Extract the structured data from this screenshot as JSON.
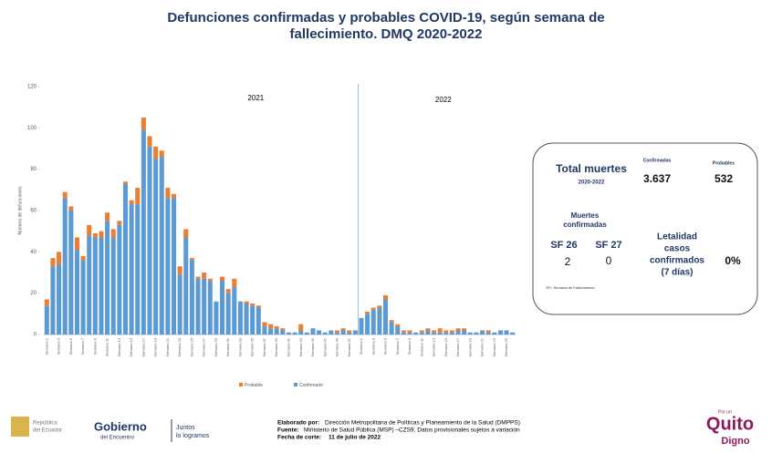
{
  "header": {
    "title_lines": [
      "Defunciones confirmadas y probables COVID-19, según semana de",
      "fallecimiento. DMQ 2020-2022"
    ]
  },
  "chart_data": {
    "type": "bar",
    "stacked": true,
    "ylabel": "Número de defunciones",
    "annotations": [
      "2021",
      "2022"
    ],
    "categories": [
      "Semana 1",
      null,
      "Semana 3",
      null,
      "Semana 5",
      null,
      "Semana 7",
      null,
      "Semana 9",
      null,
      "Semana 11",
      null,
      "Semana 13",
      null,
      "Semana 15",
      null,
      "Semana 17",
      null,
      "Semana 19",
      null,
      "Semana 21",
      null,
      "Semana 23",
      null,
      "Semana 25",
      null,
      "Semana 27",
      null,
      "Semana 29",
      null,
      "Semana 31",
      null,
      "Semana 33",
      null,
      "Semana 35",
      null,
      "Semana 37",
      null,
      "Semana 39",
      null,
      "Semana 41",
      null,
      "Semana 43",
      null,
      "Semana 45",
      null,
      "Semana 47",
      null,
      "Semana 49",
      null,
      "Semana 51",
      null,
      "Semana 1",
      null,
      "Semana 3",
      null,
      "Semana 5",
      null,
      "Semana 7",
      null,
      "Semana 9",
      null,
      "Semana 11",
      null,
      "Semana 13",
      null,
      "Semana 15",
      null,
      "Semana 17",
      null,
      "Semana 19",
      null,
      "Semana 21",
      null,
      "Semana 23",
      null,
      "Semana 25",
      null
    ],
    "series": [
      {
        "name": "Probable",
        "color": "#ed7d31",
        "values": [
          3,
          4,
          6,
          3,
          2,
          6,
          2,
          5,
          2,
          3,
          4,
          4,
          2,
          1,
          2,
          8,
          6,
          5,
          6,
          3,
          5,
          2,
          4,
          4,
          1,
          1,
          3,
          1,
          0,
          2,
          2,
          4,
          0,
          1,
          1,
          1,
          2,
          2,
          1,
          1,
          0,
          0,
          3,
          0,
          0,
          0,
          0,
          0,
          1,
          1,
          1,
          0,
          0,
          1,
          1,
          1,
          2,
          1,
          1,
          1,
          1,
          0,
          1,
          1,
          1,
          2,
          1,
          1,
          1,
          1,
          0,
          0,
          0,
          1,
          0,
          0,
          0,
          0
        ]
      },
      {
        "name": "Confirmado",
        "color": "#5b9bd5",
        "values": [
          14,
          33,
          34,
          66,
          60,
          41,
          36,
          48,
          47,
          47,
          55,
          47,
          53,
          73,
          63,
          63,
          99,
          91,
          85,
          86,
          66,
          66,
          29,
          47,
          36,
          27,
          27,
          26,
          16,
          26,
          20,
          23,
          16,
          15,
          14,
          13,
          4,
          3,
          3,
          2,
          1,
          1,
          2,
          1,
          3,
          2,
          1,
          2,
          1,
          2,
          1,
          2,
          8,
          10,
          12,
          13,
          17,
          6,
          4,
          1,
          1,
          1,
          1,
          2,
          1,
          1,
          1,
          1,
          2,
          2,
          1,
          1,
          2,
          1,
          1,
          2,
          2,
          1
        ]
      }
    ],
    "ylim": [
      0,
      120
    ],
    "yticks": [
      0,
      20,
      40,
      60,
      80,
      100,
      120
    ],
    "legend": "bottom"
  },
  "info_box": {
    "total_label": "Total muertes",
    "total_period": "2020-2022",
    "confirmed_label": "Confirmadas",
    "confirmed_value": "3.637",
    "probable_label": "Probables",
    "probable_value": "532",
    "deaths_label": [
      "Muertes",
      "confirmadas"
    ],
    "sf26_label": "SF 26",
    "sf27_label": "SF 27",
    "sf26_value": "2",
    "sf27_value": "0",
    "lethality_label": [
      "Letalidad",
      "casos",
      "confirmados",
      "(7 días)"
    ],
    "lethality_value": "0%",
    "note": "SF= Semana de Fallecimiento"
  },
  "footer": {
    "republic": [
      "República",
      "del Ecuador"
    ],
    "gobierno": "Gobierno",
    "encuentro": "del Encuentro",
    "juntos": [
      "Juntos",
      "lo logramos"
    ],
    "credits": [
      {
        "label": "Elaborado por:",
        "text": "Dirección Metropolitana de Políticas y Planeamiento de la Salud (DMPPS)"
      },
      {
        "label": "Fuente:",
        "text": "Ministerio de Salud Pública (MSP) –CZS9. Datos provisionales sujetos a variación"
      },
      {
        "label": "Fecha de corte:",
        "text": "11 de julio de 2022"
      }
    ],
    "quito": [
      "Por un",
      "Quito",
      "Digno"
    ]
  }
}
